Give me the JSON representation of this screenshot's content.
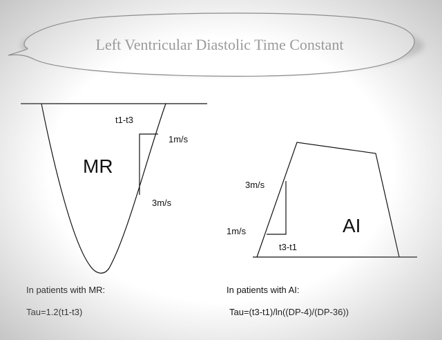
{
  "title": "Left Ventricular Diastolic Time Constant",
  "mr": {
    "name": "MR",
    "interval_label": "t1-t3",
    "upper_velocity": "1m/s",
    "lower_velocity": "3m/s"
  },
  "ai": {
    "name": "AI",
    "upper_velocity": "3m/s",
    "lower_velocity": "1m/s",
    "interval_label": "t3-t1"
  },
  "footer": {
    "mr_heading": "In patients with MR:",
    "mr_formula": "Tau=1.2(t1-t3)",
    "ai_heading": "In patients with AI:",
    "ai_formula": "Tau=(t3-t1)/ln((DP-4)/(DP-36))"
  }
}
